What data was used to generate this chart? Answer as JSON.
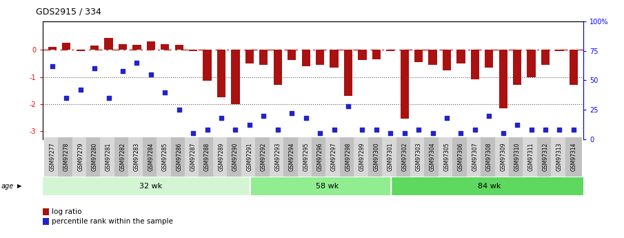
{
  "title": "GDS2915 / 334",
  "samples": [
    "GSM97277",
    "GSM97278",
    "GSM97279",
    "GSM97280",
    "GSM97281",
    "GSM97282",
    "GSM97283",
    "GSM97284",
    "GSM97285",
    "GSM97286",
    "GSM97287",
    "GSM97288",
    "GSM97289",
    "GSM97290",
    "GSM97291",
    "GSM97292",
    "GSM97293",
    "GSM97294",
    "GSM97295",
    "GSM97296",
    "GSM97297",
    "GSM97298",
    "GSM97299",
    "GSM97300",
    "GSM97301",
    "GSM97302",
    "GSM97303",
    "GSM97304",
    "GSM97305",
    "GSM97306",
    "GSM97307",
    "GSM97308",
    "GSM97309",
    "GSM97310",
    "GSM97311",
    "GSM97312",
    "GSM97313",
    "GSM97314"
  ],
  "log_ratio": [
    0.1,
    0.25,
    -0.04,
    0.15,
    0.45,
    0.2,
    0.18,
    0.3,
    0.22,
    0.18,
    -0.04,
    -1.15,
    -1.75,
    -2.0,
    -0.5,
    -0.55,
    -1.3,
    -0.38,
    -0.6,
    -0.55,
    -0.65,
    -1.7,
    -0.38,
    -0.35,
    -0.04,
    -2.55,
    -0.45,
    -0.55,
    -0.75,
    -0.5,
    -1.1,
    -0.65,
    -2.15,
    -1.3,
    -1.0,
    -0.55,
    -0.04,
    -1.3
  ],
  "percentile": [
    62,
    35,
    42,
    60,
    35,
    58,
    65,
    55,
    40,
    25,
    5,
    8,
    18,
    8,
    12,
    20,
    8,
    22,
    18,
    5,
    8,
    28,
    8,
    8,
    5,
    5,
    8,
    5,
    18,
    5,
    8,
    20,
    5,
    12,
    8,
    8,
    8,
    8
  ],
  "group_boundaries": [
    0,
    15,
    25,
    38
  ],
  "group_labels": [
    "32 wk",
    "58 wk",
    "84 wk"
  ],
  "group_colors": [
    "#d4f5d4",
    "#90ee90",
    "#5fd85f"
  ],
  "ylim_left": [
    -3.3,
    1.05
  ],
  "ylim_right": [
    0,
    100
  ],
  "bar_color": "#AA1111",
  "dot_color": "#2222CC",
  "hline_color": "#CC2222",
  "ref_line_color": "#555555",
  "bg_color": "#ffffff",
  "yticks_left": [
    0,
    -1,
    -2,
    -3
  ],
  "ytick_labels_left": [
    "0",
    "-1",
    "-2",
    "-3"
  ],
  "yticks_right": [
    0,
    25,
    50,
    75,
    100
  ],
  "ytick_labels_right": [
    "0",
    "25",
    "50",
    "75",
    "100%"
  ]
}
